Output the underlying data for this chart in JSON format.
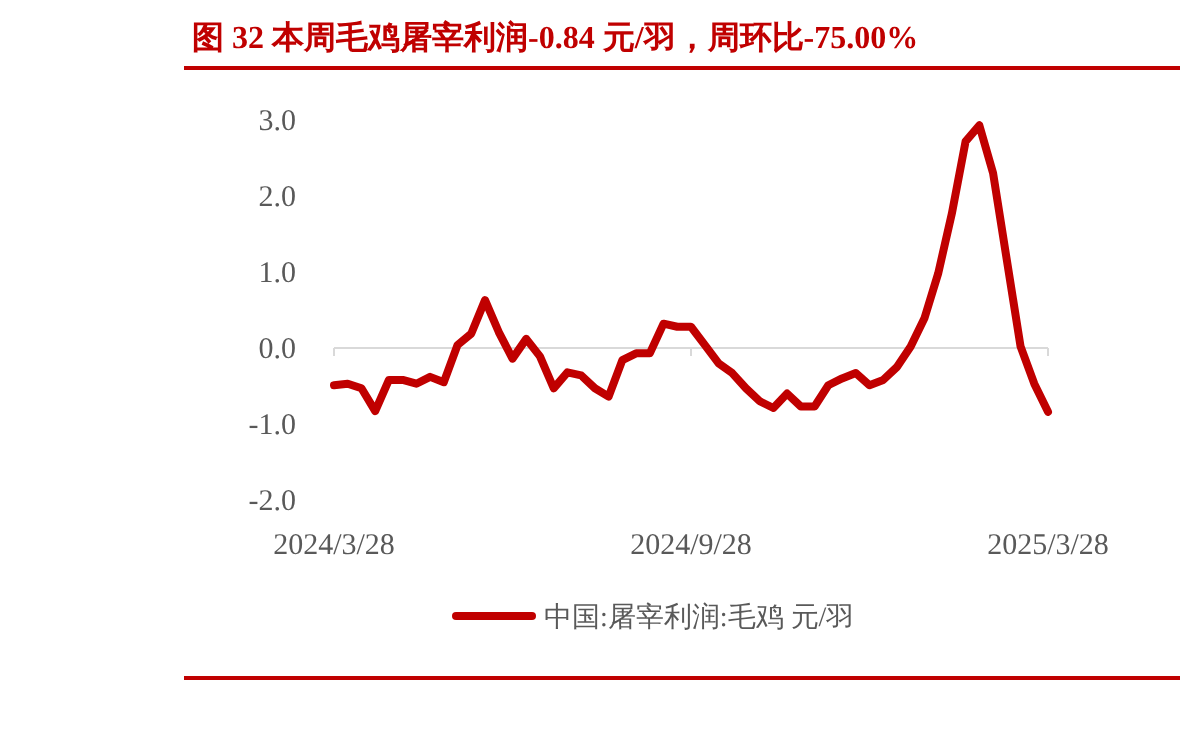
{
  "chart_data": {
    "type": "line",
    "title": "图 32 本周毛鸡屠宰利润-0.84 元/羽，周环比-75.00%",
    "categories": [
      "2024/3/28",
      null,
      null,
      null,
      null,
      null,
      null,
      null,
      null,
      null,
      null,
      null,
      null,
      null,
      null,
      null,
      null,
      null,
      null,
      null,
      null,
      null,
      null,
      null,
      null,
      null,
      "2024/9/28",
      null,
      null,
      null,
      null,
      null,
      null,
      null,
      null,
      null,
      null,
      null,
      null,
      null,
      null,
      null,
      null,
      null,
      null,
      null,
      null,
      null,
      null,
      null,
      null,
      null,
      "2025/3/28"
    ],
    "series": [
      {
        "name": "中国:屠宰利润:毛鸡 元/羽",
        "color": "#c00000",
        "values": [
          -0.49,
          -0.47,
          -0.53,
          -0.83,
          -0.42,
          -0.42,
          -0.47,
          -0.38,
          -0.45,
          0.04,
          0.19,
          0.63,
          0.21,
          -0.14,
          0.12,
          -0.11,
          -0.53,
          -0.32,
          -0.36,
          -0.53,
          -0.64,
          -0.16,
          -0.07,
          -0.07,
          0.32,
          0.28,
          0.28,
          0.04,
          -0.2,
          -0.33,
          -0.53,
          -0.7,
          -0.79,
          -0.6,
          -0.77,
          -0.77,
          -0.49,
          -0.4,
          -0.33,
          -0.49,
          -0.42,
          -0.25,
          0.02,
          0.39,
          0.98,
          1.77,
          2.72,
          2.93,
          2.3,
          1.16,
          0.02,
          -0.47,
          -0.84
        ]
      }
    ],
    "ylim": [
      -2,
      3
    ],
    "yticks": [
      {
        "value": -2,
        "label": "-2.0"
      },
      {
        "value": -1,
        "label": "-1.0"
      },
      {
        "value": 0,
        "label": "0.0"
      },
      {
        "value": 1,
        "label": "1.0"
      },
      {
        "value": 2,
        "label": "2.0"
      },
      {
        "value": 3,
        "label": "3.0"
      }
    ],
    "legend": "bottom",
    "line_style": "solid"
  }
}
